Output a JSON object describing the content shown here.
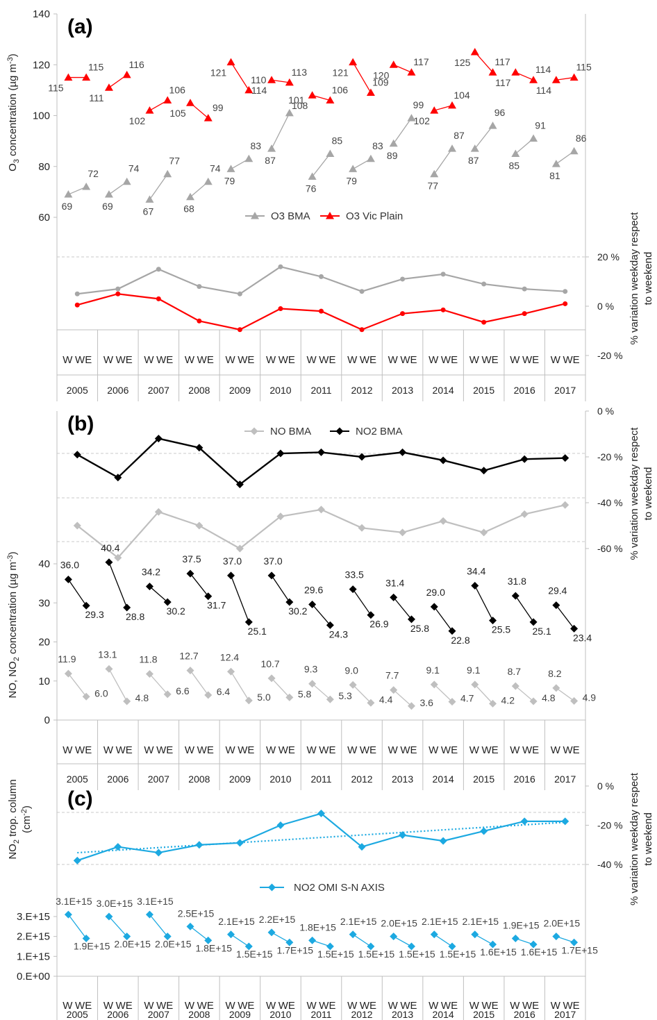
{
  "chart_data": [
    {
      "panel": "(a)",
      "type": "line",
      "categories": [
        "2005",
        "2006",
        "2007",
        "2008",
        "2009",
        "2010",
        "2011",
        "2012",
        "2013",
        "2014",
        "2015",
        "2016",
        "2017"
      ],
      "sub_categories": [
        "W",
        "WE"
      ],
      "ylabel_pre": "O",
      "ylabel_sub": "3",
      "ylabel_post": " concentration (µg m",
      "ylabel_sup": "-3",
      "ylabel_end": ")",
      "ylim": [
        60,
        140
      ],
      "yticks": [
        "60",
        "80",
        "100",
        "120",
        "140"
      ],
      "ytick_values": [
        60,
        80,
        100,
        120,
        140
      ],
      "right_axis_label_1": "% variation weekday respect",
      "right_axis_label_2": "to weekend",
      "right_yticks": [
        "20 %",
        "0 %",
        "-20 %"
      ],
      "right_ytick_values": [
        20,
        0,
        -20
      ],
      "series": [
        {
          "name": "O3 BMA",
          "color": "#a6a6a6",
          "marker": "triangle",
          "W": [
            69,
            69,
            67,
            68,
            79,
            87,
            76,
            79,
            89,
            77,
            87,
            85,
            81
          ],
          "WE": [
            72,
            74,
            77,
            74,
            83,
            101,
            85,
            83,
            99,
            87,
            96,
            91,
            86
          ],
          "W_labels": [
            "69",
            "69",
            "67",
            "68",
            "79",
            "87",
            "76",
            "79",
            "89",
            "77",
            "87",
            "85",
            "81"
          ],
          "WE_labels": [
            "72",
            "74",
            "77",
            "74",
            "83",
            "101",
            "85",
            "83",
            "99",
            "87",
            "96",
            "91",
            "86"
          ],
          "variation": [
            5,
            7,
            15,
            8,
            5,
            16,
            12,
            6,
            11,
            13,
            9,
            7,
            6
          ]
        },
        {
          "name": "O3 Vic Plain",
          "color": "#ff0000",
          "marker": "triangle",
          "W": [
            115,
            111,
            102,
            105,
            121,
            114,
            108,
            121,
            120,
            102,
            125,
            117,
            114
          ],
          "WE": [
            115,
            116,
            106,
            99,
            110,
            113,
            106,
            109,
            117,
            104,
            117,
            114,
            115
          ],
          "W_labels": [
            "115",
            "111",
            "102",
            "105",
            "121",
            "114",
            "108",
            "121",
            "120",
            "102",
            "125",
            "117",
            "114"
          ],
          "WE_labels": [
            "115",
            "116",
            "106",
            "99",
            "110",
            "113",
            "106",
            "109",
            "117",
            "104",
            "117",
            "114",
            "115"
          ],
          "variation": [
            0.5,
            5,
            3,
            -6,
            -9.5,
            -1,
            -2,
            -9.5,
            -3,
            -1.5,
            -6.5,
            -3,
            1
          ]
        }
      ],
      "legend": [
        "O3 BMA",
        "O3 Vic Plain"
      ],
      "legend_position": "middle"
    },
    {
      "panel": "(b)",
      "type": "line",
      "categories": [
        "2005",
        "2006",
        "2007",
        "2008",
        "2009",
        "2010",
        "2011",
        "2012",
        "2013",
        "2014",
        "2015",
        "2016",
        "2017"
      ],
      "sub_categories": [
        "W",
        "WE"
      ],
      "ylabel_pre": "NO, NO",
      "ylabel_sub": "2",
      "ylabel_post": " concentration (µg m",
      "ylabel_sup": "-3",
      "ylabel_end": ")",
      "ylim": [
        0,
        40
      ],
      "yticks": [
        "0",
        "10",
        "20",
        "30",
        "40"
      ],
      "ytick_values": [
        0,
        10,
        20,
        30,
        40
      ],
      "right_axis_label_1": "% variation weekday respect",
      "right_axis_label_2": "to weekend",
      "right_yticks": [
        "0 %",
        "-20 %",
        "-40 %",
        "-60 %"
      ],
      "right_ytick_values": [
        0,
        -20,
        -40,
        -60
      ],
      "series": [
        {
          "name": "NO BMA",
          "color": "#bfbfbf",
          "marker": "diamond",
          "W": [
            11.9,
            13.1,
            11.8,
            12.7,
            12.4,
            10.7,
            9.3,
            9.0,
            7.7,
            9.1,
            9.1,
            8.7,
            8.2
          ],
          "WE": [
            6.0,
            4.8,
            6.6,
            6.4,
            5.0,
            5.8,
            5.3,
            4.4,
            3.6,
            4.7,
            4.2,
            4.8,
            4.9
          ],
          "W_labels": [
            "11.9",
            "13.1",
            "11.8",
            "12.7",
            "12.4",
            "10.7",
            "9.3",
            "9.0",
            "7.7",
            "9.1",
            "9.1",
            "8.7",
            "8.2"
          ],
          "WE_labels": [
            "6.0",
            "4.8",
            "6.6",
            "6.4",
            "5.0",
            "5.8",
            "5.3",
            "4.4",
            "3.6",
            "4.7",
            "4.2",
            "4.8",
            "4.9"
          ],
          "variation": [
            -50,
            -64,
            -44,
            -50,
            -60,
            -46,
            -43,
            -51,
            -53,
            -48,
            -53,
            -45,
            -41
          ]
        },
        {
          "name": "NO2 BMA",
          "color": "#000000",
          "marker": "diamond",
          "W": [
            36.0,
            40.4,
            34.2,
            37.5,
            37.0,
            37.0,
            29.6,
            33.5,
            31.4,
            29.0,
            34.4,
            31.8,
            29.4
          ],
          "WE": [
            29.3,
            28.8,
            30.2,
            31.7,
            25.1,
            30.2,
            24.3,
            26.9,
            25.8,
            22.8,
            25.5,
            25.1,
            23.4
          ],
          "W_labels": [
            "36.0",
            "40.4",
            "34.2",
            "37.5",
            "37.0",
            "37.0",
            "29.6",
            "33.5",
            "31.4",
            "29.0",
            "34.4",
            "31.8",
            "29.4"
          ],
          "WE_labels": [
            "29.3",
            "28.8",
            "30.2",
            "31.7",
            "25.1",
            "30.2",
            "24.3",
            "26.9",
            "25.8",
            "22.8",
            "25.5",
            "25.1",
            "23.4"
          ],
          "variation": [
            -19,
            -29,
            -12,
            -16,
            -32,
            -18.5,
            -18,
            -20,
            -18,
            -21.5,
            -26,
            -21,
            -20.5
          ]
        }
      ],
      "legend": [
        "NO BMA",
        "NO2 BMA"
      ],
      "legend_position": "top"
    },
    {
      "panel": "(c)",
      "type": "line",
      "categories": [
        "2005",
        "2006",
        "2007",
        "2008",
        "2009",
        "2010",
        "2011",
        "2012",
        "2013",
        "2014",
        "2015",
        "2016",
        "2017"
      ],
      "sub_categories": [
        "W",
        "WE"
      ],
      "ylabel_pre": "NO",
      "ylabel_sub": "2",
      "ylabel_post": " trop. column",
      "ylabel2_pre": "(cm",
      "ylabel2_sup": "-2",
      "ylabel2_end": ")",
      "ylim": [
        0,
        3000000000000000.0
      ],
      "yticks": [
        "0.E+00",
        "1.E+15",
        "2.E+15",
        "3.E+15"
      ],
      "ytick_values": [
        0,
        1000000000000000.0,
        2000000000000000.0,
        3000000000000000.0
      ],
      "right_axis_label_1": "% variation weekday respect",
      "right_axis_label_2": "to weekend",
      "right_yticks": [
        "0 %",
        "-20 %",
        "-40 %"
      ],
      "right_ytick_values": [
        0,
        -20,
        -40
      ],
      "series": [
        {
          "name": "NO2 OMI S-N AXIS",
          "color": "#1ca9e1",
          "marker": "diamond",
          "W": [
            3100000000000000.0,
            3000000000000000.0,
            3100000000000000.0,
            2500000000000000.0,
            2100000000000000.0,
            2200000000000000.0,
            1800000000000000.0,
            2100000000000000.0,
            2000000000000000.0,
            2100000000000000.0,
            2100000000000000.0,
            1900000000000000.0,
            2000000000000000.0
          ],
          "WE": [
            1900000000000000.0,
            2000000000000000.0,
            2000000000000000.0,
            1800000000000000.0,
            1500000000000000.0,
            1700000000000000.0,
            1500000000000000.0,
            1500000000000000.0,
            1500000000000000.0,
            1500000000000000.0,
            1600000000000000.0,
            1600000000000000.0,
            1700000000000000.0
          ],
          "W_labels": [
            "3.1E+15",
            "3.0E+15",
            "3.1E+15",
            "2.5E+15",
            "2.1E+15",
            "2.2E+15",
            "1.8E+15",
            "2.1E+15",
            "2.0E+15",
            "2.1E+15",
            "2.1E+15",
            "1.9E+15",
            "2.0E+15"
          ],
          "WE_labels": [
            "1.9E+15",
            "2.0E+15",
            "2.0E+15",
            "1.8E+15",
            "1.5E+15",
            "1.7E+15",
            "1.5E+15",
            "1.5E+15",
            "1.5E+15",
            "1.5E+15",
            "1.6E+15",
            "1.6E+15",
            "1.7E+15"
          ],
          "variation": [
            -38,
            -31,
            -34,
            -30,
            -29,
            -20,
            -14,
            -31,
            -25,
            -28,
            -23,
            -18,
            -18
          ],
          "trendline": [
            -34,
            -18.5
          ]
        }
      ],
      "legend": [
        "NO2 OMI S-N AXIS"
      ],
      "legend_position": "middle"
    }
  ]
}
